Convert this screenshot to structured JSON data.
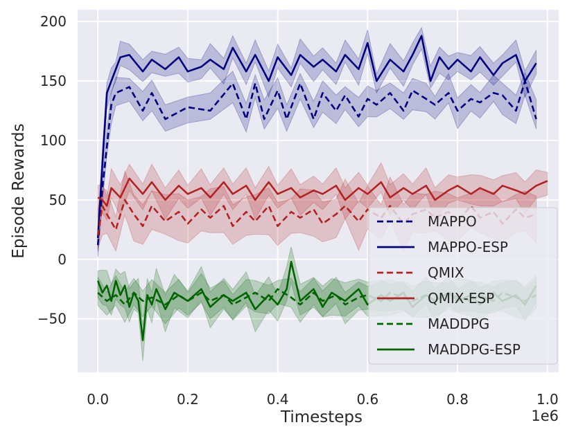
{
  "chart_data": {
    "type": "line",
    "title": "",
    "xlabel": "Timesteps",
    "ylabel": "Episode Rewards",
    "x_offset_label": "1e6",
    "xlim": [
      -0.045,
      1.025
    ],
    "ylim": [
      -95,
      210
    ],
    "x_ticks": [
      0.0,
      0.2,
      0.4,
      0.6,
      0.8,
      1.0
    ],
    "x_tick_labels": [
      "0.0",
      "0.2",
      "0.4",
      "0.6",
      "0.8",
      "1.0"
    ],
    "y_ticks": [
      -50,
      0,
      50,
      100,
      150,
      200
    ],
    "y_tick_labels": [
      "−50",
      "0",
      "50",
      "100",
      "150",
      "200"
    ],
    "grid": true,
    "legend_position": "lower-right",
    "series": [
      {
        "name": "MAPPO",
        "color": "#00007f",
        "dash": "dashed",
        "band": 12,
        "points": [
          [
            0.0,
            12
          ],
          [
            0.01,
            60
          ],
          [
            0.02,
            95
          ],
          [
            0.03,
            130
          ],
          [
            0.04,
            140
          ],
          [
            0.07,
            145
          ],
          [
            0.1,
            125
          ],
          [
            0.12,
            140
          ],
          [
            0.15,
            118
          ],
          [
            0.2,
            128
          ],
          [
            0.25,
            125
          ],
          [
            0.3,
            148
          ],
          [
            0.33,
            118
          ],
          [
            0.35,
            148
          ],
          [
            0.37,
            118
          ],
          [
            0.4,
            142
          ],
          [
            0.42,
            118
          ],
          [
            0.45,
            148
          ],
          [
            0.48,
            118
          ],
          [
            0.5,
            140
          ],
          [
            0.53,
            125
          ],
          [
            0.55,
            138
          ],
          [
            0.58,
            120
          ],
          [
            0.6,
            135
          ],
          [
            0.62,
            130
          ],
          [
            0.65,
            140
          ],
          [
            0.68,
            125
          ],
          [
            0.7,
            142
          ],
          [
            0.73,
            135
          ],
          [
            0.75,
            130
          ],
          [
            0.78,
            140
          ],
          [
            0.8,
            125
          ],
          [
            0.83,
            135
          ],
          [
            0.85,
            132
          ],
          [
            0.88,
            140
          ],
          [
            0.9,
            138
          ],
          [
            0.93,
            125
          ],
          [
            0.95,
            150
          ],
          [
            0.975,
            118
          ]
        ]
      },
      {
        "name": "MAPPO-ESP",
        "color": "#00007f",
        "dash": "solid",
        "band": 10,
        "points": [
          [
            0.0,
            18
          ],
          [
            0.01,
            80
          ],
          [
            0.02,
            140
          ],
          [
            0.03,
            150
          ],
          [
            0.04,
            160
          ],
          [
            0.05,
            170
          ],
          [
            0.07,
            172
          ],
          [
            0.1,
            158
          ],
          [
            0.12,
            168
          ],
          [
            0.15,
            160
          ],
          [
            0.18,
            170
          ],
          [
            0.2,
            158
          ],
          [
            0.23,
            162
          ],
          [
            0.25,
            168
          ],
          [
            0.28,
            160
          ],
          [
            0.3,
            178
          ],
          [
            0.33,
            158
          ],
          [
            0.35,
            172
          ],
          [
            0.38,
            150
          ],
          [
            0.4,
            170
          ],
          [
            0.43,
            155
          ],
          [
            0.45,
            172
          ],
          [
            0.48,
            162
          ],
          [
            0.5,
            168
          ],
          [
            0.53,
            158
          ],
          [
            0.55,
            172
          ],
          [
            0.58,
            160
          ],
          [
            0.6,
            182
          ],
          [
            0.62,
            150
          ],
          [
            0.65,
            168
          ],
          [
            0.68,
            158
          ],
          [
            0.7,
            172
          ],
          [
            0.72,
            188
          ],
          [
            0.74,
            150
          ],
          [
            0.76,
            170
          ],
          [
            0.78,
            160
          ],
          [
            0.8,
            168
          ],
          [
            0.83,
            158
          ],
          [
            0.85,
            170
          ],
          [
            0.88,
            155
          ],
          [
            0.9,
            165
          ],
          [
            0.93,
            172
          ],
          [
            0.95,
            150
          ],
          [
            0.975,
            165
          ]
        ]
      },
      {
        "name": "QMIX",
        "color": "#b22222",
        "dash": "dashed",
        "band": 18,
        "points": [
          [
            0.0,
            20
          ],
          [
            0.01,
            45
          ],
          [
            0.02,
            38
          ],
          [
            0.04,
            25
          ],
          [
            0.06,
            50
          ],
          [
            0.08,
            38
          ],
          [
            0.1,
            28
          ],
          [
            0.12,
            45
          ],
          [
            0.15,
            32
          ],
          [
            0.18,
            40
          ],
          [
            0.2,
            30
          ],
          [
            0.23,
            42
          ],
          [
            0.25,
            35
          ],
          [
            0.28,
            45
          ],
          [
            0.3,
            28
          ],
          [
            0.33,
            40
          ],
          [
            0.35,
            32
          ],
          [
            0.38,
            45
          ],
          [
            0.4,
            28
          ],
          [
            0.43,
            40
          ],
          [
            0.45,
            35
          ],
          [
            0.48,
            42
          ],
          [
            0.5,
            30
          ],
          [
            0.53,
            38
          ],
          [
            0.55,
            45
          ],
          [
            0.58,
            32
          ],
          [
            0.6,
            42
          ],
          [
            0.63,
            35
          ],
          [
            0.65,
            45
          ],
          [
            0.68,
            30
          ],
          [
            0.7,
            38
          ],
          [
            0.73,
            42
          ],
          [
            0.75,
            35
          ],
          [
            0.78,
            40
          ],
          [
            0.8,
            32
          ],
          [
            0.83,
            45
          ],
          [
            0.85,
            35
          ],
          [
            0.88,
            40
          ],
          [
            0.9,
            30
          ],
          [
            0.93,
            42
          ],
          [
            0.95,
            35
          ],
          [
            0.975,
            38
          ]
        ]
      },
      {
        "name": "QMIX-ESP",
        "color": "#b22222",
        "dash": "solid",
        "band": 12,
        "points": [
          [
            0.0,
            52
          ],
          [
            0.01,
            50
          ],
          [
            0.02,
            45
          ],
          [
            0.03,
            60
          ],
          [
            0.05,
            52
          ],
          [
            0.07,
            68
          ],
          [
            0.1,
            55
          ],
          [
            0.12,
            65
          ],
          [
            0.15,
            50
          ],
          [
            0.18,
            62
          ],
          [
            0.2,
            55
          ],
          [
            0.23,
            60
          ],
          [
            0.25,
            52
          ],
          [
            0.28,
            65
          ],
          [
            0.3,
            55
          ],
          [
            0.33,
            62
          ],
          [
            0.35,
            50
          ],
          [
            0.38,
            65
          ],
          [
            0.4,
            55
          ],
          [
            0.43,
            60
          ],
          [
            0.45,
            52
          ],
          [
            0.48,
            58
          ],
          [
            0.5,
            55
          ],
          [
            0.53,
            62
          ],
          [
            0.55,
            50
          ],
          [
            0.58,
            60
          ],
          [
            0.6,
            55
          ],
          [
            0.63,
            65
          ],
          [
            0.65,
            52
          ],
          [
            0.68,
            60
          ],
          [
            0.7,
            55
          ],
          [
            0.73,
            62
          ],
          [
            0.75,
            50
          ],
          [
            0.78,
            58
          ],
          [
            0.8,
            62
          ],
          [
            0.83,
            55
          ],
          [
            0.85,
            60
          ],
          [
            0.88,
            55
          ],
          [
            0.9,
            62
          ],
          [
            0.93,
            58
          ],
          [
            0.95,
            55
          ],
          [
            0.975,
            62
          ],
          [
            1.0,
            66
          ]
        ]
      },
      {
        "name": "MADDPG",
        "color": "#006400",
        "dash": "dashed",
        "band": 12,
        "points": [
          [
            0.0,
            -28
          ],
          [
            0.02,
            -35
          ],
          [
            0.04,
            -30
          ],
          [
            0.06,
            -38
          ],
          [
            0.08,
            -28
          ],
          [
            0.1,
            -35
          ],
          [
            0.12,
            -32
          ],
          [
            0.15,
            -38
          ],
          [
            0.18,
            -30
          ],
          [
            0.2,
            -35
          ],
          [
            0.23,
            -28
          ],
          [
            0.25,
            -35
          ],
          [
            0.28,
            -30
          ],
          [
            0.3,
            -38
          ],
          [
            0.33,
            -32
          ],
          [
            0.35,
            -28
          ],
          [
            0.38,
            -35
          ],
          [
            0.4,
            -25
          ],
          [
            0.43,
            -32
          ],
          [
            0.45,
            -38
          ],
          [
            0.48,
            -28
          ],
          [
            0.5,
            -35
          ],
          [
            0.53,
            -30
          ],
          [
            0.55,
            -38
          ],
          [
            0.58,
            -32
          ],
          [
            0.6,
            -30
          ],
          [
            0.63,
            -35
          ],
          [
            0.65,
            -28
          ],
          [
            0.68,
            -32
          ],
          [
            0.7,
            -35
          ],
          [
            0.73,
            -30
          ],
          [
            0.75,
            -35
          ],
          [
            0.78,
            -28
          ],
          [
            0.8,
            -32
          ],
          [
            0.83,
            -35
          ],
          [
            0.85,
            -30
          ],
          [
            0.88,
            -35
          ],
          [
            0.9,
            -28
          ],
          [
            0.93,
            -32
          ],
          [
            0.95,
            -35
          ],
          [
            0.975,
            -30
          ]
        ]
      },
      {
        "name": "MADDPG-ESP",
        "color": "#006400",
        "dash": "solid",
        "band": 14,
        "points": [
          [
            0.0,
            -18
          ],
          [
            0.01,
            -28
          ],
          [
            0.02,
            -22
          ],
          [
            0.03,
            -35
          ],
          [
            0.04,
            -18
          ],
          [
            0.05,
            -30
          ],
          [
            0.06,
            -22
          ],
          [
            0.07,
            -40
          ],
          [
            0.08,
            -28
          ],
          [
            0.09,
            -35
          ],
          [
            0.1,
            -68
          ],
          [
            0.11,
            -30
          ],
          [
            0.12,
            -38
          ],
          [
            0.13,
            -25
          ],
          [
            0.15,
            -42
          ],
          [
            0.17,
            -28
          ],
          [
            0.2,
            -35
          ],
          [
            0.23,
            -25
          ],
          [
            0.25,
            -40
          ],
          [
            0.28,
            -30
          ],
          [
            0.3,
            -35
          ],
          [
            0.33,
            -28
          ],
          [
            0.35,
            -42
          ],
          [
            0.38,
            -30
          ],
          [
            0.4,
            -38
          ],
          [
            0.42,
            -25
          ],
          [
            0.43,
            -2
          ],
          [
            0.45,
            -35
          ],
          [
            0.48,
            -25
          ],
          [
            0.5,
            -40
          ],
          [
            0.52,
            -28
          ],
          [
            0.55,
            -35
          ],
          [
            0.58,
            -25
          ],
          [
            0.6,
            -38
          ],
          [
            0.63,
            -30
          ],
          [
            0.65,
            -35
          ],
          [
            0.68,
            -28
          ],
          [
            0.7,
            -40
          ],
          [
            0.73,
            -30
          ],
          [
            0.75,
            -35
          ],
          [
            0.78,
            -28
          ],
          [
            0.8,
            -35
          ],
          [
            0.83,
            -30
          ],
          [
            0.85,
            -38
          ],
          [
            0.88,
            -28
          ],
          [
            0.9,
            -35
          ],
          [
            0.93,
            -30
          ],
          [
            0.95,
            -38
          ],
          [
            0.975,
            -22
          ]
        ]
      }
    ]
  }
}
